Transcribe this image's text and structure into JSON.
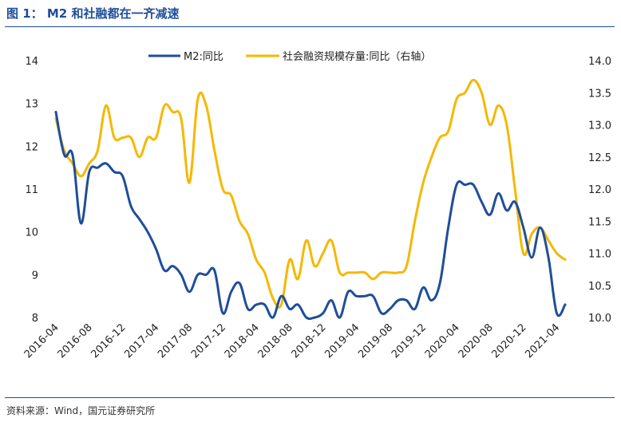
{
  "figure": {
    "title": "图 1：  M2 和社融都在一齐减速",
    "source": "资料来源：Wind，国元证券研究所"
  },
  "chart_data": {
    "type": "line",
    "x_tick_labels": [
      "2016-04",
      "2016-08",
      "2016-12",
      "2017-04",
      "2017-08",
      "2017-12",
      "2018-04",
      "2018-08",
      "2018-12",
      "2019-04",
      "2019-08",
      "2019-12",
      "2020-04",
      "2020-08",
      "2020-12",
      "2021-04"
    ],
    "y_left": {
      "min": 8,
      "max": 14,
      "ticks": [
        "8",
        "9",
        "10",
        "11",
        "12",
        "13",
        "14"
      ]
    },
    "y_right": {
      "min": 10.0,
      "max": 14.0,
      "ticks": [
        "10.0",
        "10.5",
        "11.0",
        "11.5",
        "12.0",
        "12.5",
        "13.0",
        "13.5",
        "14.0"
      ]
    },
    "legend_position": "top",
    "series": [
      {
        "name": "M2:同比",
        "axis": "left",
        "color": "#1f4e99",
        "x": [
          "2016-04",
          "2016-05",
          "2016-06",
          "2016-07",
          "2016-08",
          "2016-09",
          "2016-10",
          "2016-11",
          "2016-12",
          "2017-01",
          "2017-02",
          "2017-03",
          "2017-04",
          "2017-05",
          "2017-06",
          "2017-07",
          "2017-08",
          "2017-09",
          "2017-10",
          "2017-11",
          "2017-12",
          "2018-01",
          "2018-02",
          "2018-03",
          "2018-04",
          "2018-05",
          "2018-06",
          "2018-07",
          "2018-08",
          "2018-09",
          "2018-10",
          "2018-11",
          "2018-12",
          "2019-01",
          "2019-02",
          "2019-03",
          "2019-04",
          "2019-05",
          "2019-06",
          "2019-07",
          "2019-08",
          "2019-09",
          "2019-10",
          "2019-11",
          "2019-12",
          "2020-01",
          "2020-02",
          "2020-03",
          "2020-04",
          "2020-05",
          "2020-06",
          "2020-07",
          "2020-08",
          "2020-09",
          "2020-10",
          "2020-11",
          "2020-12",
          "2021-01",
          "2021-02",
          "2021-03",
          "2021-04",
          "2021-05"
        ],
        "values": [
          12.8,
          11.8,
          11.8,
          10.2,
          11.4,
          11.5,
          11.6,
          11.4,
          11.3,
          10.6,
          10.3,
          10.0,
          9.6,
          9.1,
          9.2,
          9.0,
          8.6,
          9.0,
          9.0,
          9.1,
          8.1,
          8.6,
          8.8,
          8.2,
          8.3,
          8.3,
          8.0,
          8.5,
          8.2,
          8.3,
          8.0,
          8.0,
          8.1,
          8.4,
          8.0,
          8.6,
          8.5,
          8.5,
          8.5,
          8.1,
          8.2,
          8.4,
          8.4,
          8.2,
          8.7,
          8.4,
          8.8,
          10.1,
          11.1,
          11.1,
          11.1,
          10.7,
          10.4,
          10.9,
          10.5,
          10.7,
          10.1,
          9.4,
          10.1,
          9.4,
          8.1,
          8.3
        ]
      },
      {
        "name": "社会融资规模存量:同比（右轴）",
        "axis": "right",
        "color": "#f5b800",
        "x": [
          "2016-04",
          "2016-05",
          "2016-06",
          "2016-07",
          "2016-08",
          "2016-09",
          "2016-10",
          "2016-11",
          "2016-12",
          "2017-01",
          "2017-02",
          "2017-03",
          "2017-04",
          "2017-05",
          "2017-06",
          "2017-07",
          "2017-08",
          "2017-09",
          "2017-10",
          "2017-11",
          "2017-12",
          "2018-01",
          "2018-02",
          "2018-03",
          "2018-04",
          "2018-05",
          "2018-06",
          "2018-07",
          "2018-08",
          "2018-09",
          "2018-10",
          "2018-11",
          "2018-12",
          "2019-01",
          "2019-02",
          "2019-03",
          "2019-04",
          "2019-05",
          "2019-06",
          "2019-07",
          "2019-08",
          "2019-09",
          "2019-10",
          "2019-11",
          "2019-12",
          "2020-01",
          "2020-02",
          "2020-03",
          "2020-04",
          "2020-05",
          "2020-06",
          "2020-07",
          "2020-08",
          "2020-09",
          "2020-10",
          "2020-11",
          "2020-12",
          "2021-01",
          "2021-02",
          "2021-03",
          "2021-04",
          "2021-05"
        ],
        "values": [
          13.1,
          12.6,
          12.4,
          12.2,
          12.4,
          12.6,
          13.3,
          12.8,
          12.8,
          12.8,
          12.5,
          12.8,
          12.8,
          13.3,
          13.2,
          13.1,
          12.1,
          13.4,
          13.3,
          12.6,
          12.0,
          11.9,
          11.5,
          11.3,
          10.9,
          10.7,
          10.3,
          10.2,
          10.9,
          10.6,
          11.2,
          10.8,
          11.0,
          11.2,
          10.7,
          10.7,
          10.7,
          10.7,
          10.6,
          10.7,
          10.7,
          10.7,
          10.8,
          11.5,
          12.1,
          12.5,
          12.8,
          12.9,
          13.4,
          13.5,
          13.7,
          13.5,
          13.0,
          13.3,
          13.0,
          12.0,
          11.0,
          11.3,
          11.4,
          11.2,
          11.0,
          10.9
        ]
      }
    ]
  }
}
